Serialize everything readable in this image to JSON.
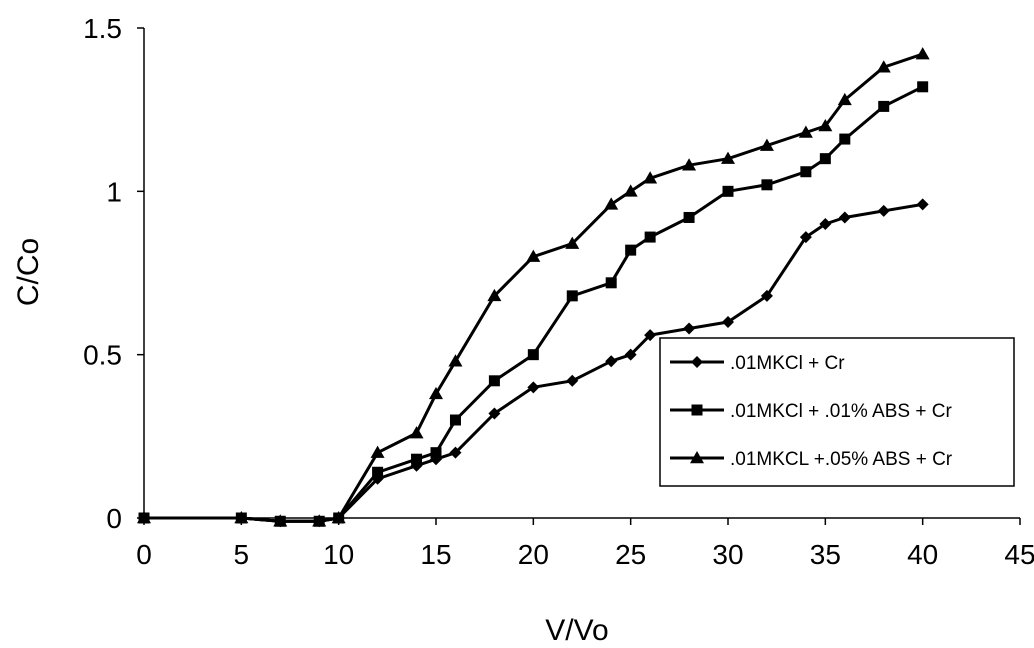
{
  "chart_data": {
    "type": "line",
    "title": "",
    "xlabel": "V/Vo",
    "ylabel": "C/Co",
    "xlim": [
      0,
      45
    ],
    "ylim": [
      0,
      1.5
    ],
    "x_ticks": [
      "0",
      "5",
      "10",
      "15",
      "20",
      "25",
      "30",
      "35",
      "40",
      "45"
    ],
    "y_ticks": [
      "0",
      "0.5",
      "1",
      "1.5"
    ],
    "grid": false,
    "legend_position": "bottom-right",
    "series": [
      {
        "name": ".01MKCl + Cr",
        "marker": "diamond",
        "color": "#000000",
        "points": [
          [
            0,
            0
          ],
          [
            5,
            0
          ],
          [
            7,
            -0.01
          ],
          [
            9,
            -0.01
          ],
          [
            10,
            0
          ],
          [
            12,
            0.12
          ],
          [
            14,
            0.16
          ],
          [
            15,
            0.18
          ],
          [
            16,
            0.2
          ],
          [
            18,
            0.32
          ],
          [
            20,
            0.4
          ],
          [
            22,
            0.42
          ],
          [
            24,
            0.48
          ],
          [
            25,
            0.5
          ],
          [
            26,
            0.56
          ],
          [
            28,
            0.58
          ],
          [
            30,
            0.6
          ],
          [
            32,
            0.68
          ],
          [
            34,
            0.86
          ],
          [
            35,
            0.9
          ],
          [
            36,
            0.92
          ],
          [
            38,
            0.94
          ],
          [
            40,
            0.96
          ]
        ]
      },
      {
        "name": ".01MKCl + .01% ABS + Cr",
        "marker": "square",
        "color": "#000000",
        "points": [
          [
            0,
            0
          ],
          [
            5,
            0
          ],
          [
            7,
            -0.01
          ],
          [
            9,
            -0.01
          ],
          [
            10,
            0
          ],
          [
            12,
            0.14
          ],
          [
            14,
            0.18
          ],
          [
            15,
            0.2
          ],
          [
            16,
            0.3
          ],
          [
            18,
            0.42
          ],
          [
            20,
            0.5
          ],
          [
            22,
            0.68
          ],
          [
            24,
            0.72
          ],
          [
            25,
            0.82
          ],
          [
            26,
            0.86
          ],
          [
            28,
            0.92
          ],
          [
            30,
            1.0
          ],
          [
            32,
            1.02
          ],
          [
            34,
            1.06
          ],
          [
            35,
            1.1
          ],
          [
            36,
            1.16
          ],
          [
            38,
            1.26
          ],
          [
            40,
            1.32
          ]
        ]
      },
      {
        "name": ".01MKCL +.05% ABS + Cr",
        "marker": "triangle",
        "color": "#000000",
        "points": [
          [
            0,
            0
          ],
          [
            5,
            0
          ],
          [
            7,
            -0.01
          ],
          [
            9,
            -0.01
          ],
          [
            10,
            0
          ],
          [
            12,
            0.2
          ],
          [
            14,
            0.26
          ],
          [
            15,
            0.38
          ],
          [
            16,
            0.48
          ],
          [
            18,
            0.68
          ],
          [
            20,
            0.8
          ],
          [
            22,
            0.84
          ],
          [
            24,
            0.96
          ],
          [
            25,
            1.0
          ],
          [
            26,
            1.04
          ],
          [
            28,
            1.08
          ],
          [
            30,
            1.1
          ],
          [
            32,
            1.14
          ],
          [
            34,
            1.18
          ],
          [
            35,
            1.2
          ],
          [
            36,
            1.28
          ],
          [
            38,
            1.38
          ],
          [
            40,
            1.42
          ]
        ]
      }
    ]
  }
}
